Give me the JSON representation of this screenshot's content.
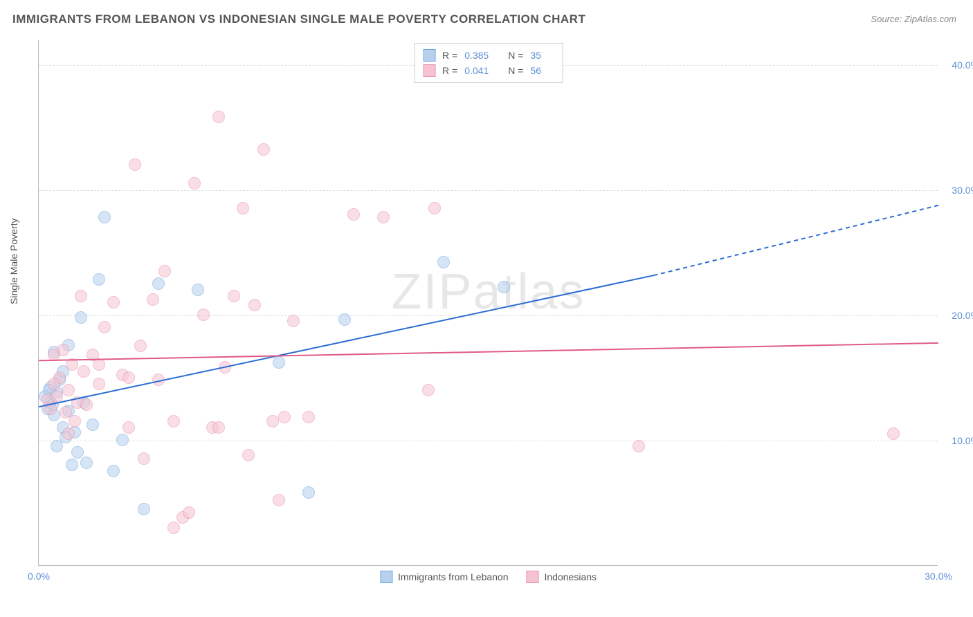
{
  "title": "IMMIGRANTS FROM LEBANON VS INDONESIAN SINGLE MALE POVERTY CORRELATION CHART",
  "source": "Source: ZipAtlas.com",
  "y_axis_label": "Single Male Poverty",
  "watermark": "ZIPatlas",
  "chart": {
    "type": "scatter",
    "xlim": [
      0,
      30
    ],
    "ylim": [
      0,
      42
    ],
    "x_ticks": [
      0.0,
      30.0
    ],
    "y_ticks": [
      10.0,
      20.0,
      30.0,
      40.0
    ],
    "x_tick_labels": [
      "0.0%",
      "30.0%"
    ],
    "y_tick_labels": [
      "10.0%",
      "20.0%",
      "30.0%",
      "40.0%"
    ],
    "grid_color": "#dddddd",
    "background_color": "#ffffff",
    "axis_color": "#bbbbbb",
    "tick_label_color": "#5b8fd6",
    "point_radius": 9,
    "point_opacity": 0.55,
    "series": [
      {
        "name": "Immigrants from Lebanon",
        "color_fill": "#b6d0ee",
        "color_stroke": "#6fa3de",
        "R": "0.385",
        "N": "35",
        "trend": {
          "x1": 0,
          "y1": 12.7,
          "x2": 20.5,
          "y2": 23.2,
          "x2_dash": 30,
          "y2_dash": 28.8,
          "color": "#2b6cd4",
          "width": 2
        },
        "points": [
          [
            0.2,
            13.5
          ],
          [
            0.3,
            12.5
          ],
          [
            0.4,
            13.0
          ],
          [
            0.4,
            14.2
          ],
          [
            0.5,
            12.0
          ],
          [
            0.5,
            17.0
          ],
          [
            0.6,
            13.8
          ],
          [
            0.7,
            14.8
          ],
          [
            0.8,
            11.0
          ],
          [
            0.8,
            15.5
          ],
          [
            0.9,
            10.2
          ],
          [
            1.0,
            12.3
          ],
          [
            1.0,
            17.6
          ],
          [
            1.1,
            8.0
          ],
          [
            1.2,
            10.6
          ],
          [
            1.3,
            9.0
          ],
          [
            1.4,
            19.8
          ],
          [
            1.5,
            13.0
          ],
          [
            1.8,
            11.2
          ],
          [
            2.0,
            22.8
          ],
          [
            2.2,
            27.8
          ],
          [
            2.5,
            7.5
          ],
          [
            2.8,
            10.0
          ],
          [
            3.5,
            4.5
          ],
          [
            4.0,
            22.5
          ],
          [
            5.3,
            22.0
          ],
          [
            8.0,
            16.2
          ],
          [
            9.0,
            5.8
          ],
          [
            10.2,
            19.6
          ],
          [
            13.5,
            24.2
          ],
          [
            15.5,
            22.2
          ],
          [
            0.6,
            9.5
          ],
          [
            1.6,
            8.2
          ],
          [
            0.35,
            14.0
          ],
          [
            0.45,
            12.8
          ]
        ]
      },
      {
        "name": "Indonesians",
        "color_fill": "#f6c4d1",
        "color_stroke": "#e98bac",
        "R": "0.041",
        "N": "56",
        "trend": {
          "x1": 0,
          "y1": 16.4,
          "x2": 30,
          "y2": 17.8,
          "color": "#e05a8a",
          "width": 2
        },
        "points": [
          [
            0.3,
            13.2
          ],
          [
            0.4,
            12.5
          ],
          [
            0.5,
            16.8
          ],
          [
            0.6,
            13.5
          ],
          [
            0.7,
            15.0
          ],
          [
            0.8,
            17.2
          ],
          [
            0.9,
            12.2
          ],
          [
            1.0,
            14.0
          ],
          [
            1.1,
            16.0
          ],
          [
            1.2,
            11.5
          ],
          [
            1.3,
            13.0
          ],
          [
            1.4,
            21.5
          ],
          [
            1.5,
            15.5
          ],
          [
            1.6,
            12.8
          ],
          [
            1.8,
            16.8
          ],
          [
            2.0,
            14.5
          ],
          [
            2.2,
            19.0
          ],
          [
            2.5,
            21.0
          ],
          [
            2.8,
            15.2
          ],
          [
            3.0,
            11.0
          ],
          [
            3.2,
            32.0
          ],
          [
            3.4,
            17.5
          ],
          [
            3.5,
            8.5
          ],
          [
            3.8,
            21.2
          ],
          [
            4.0,
            14.8
          ],
          [
            4.2,
            23.5
          ],
          [
            4.5,
            11.5
          ],
          [
            4.8,
            3.8
          ],
          [
            5.0,
            4.2
          ],
          [
            5.2,
            30.5
          ],
          [
            5.5,
            20.0
          ],
          [
            5.8,
            11.0
          ],
          [
            6.0,
            35.8
          ],
          [
            6.2,
            15.8
          ],
          [
            6.5,
            21.5
          ],
          [
            6.8,
            28.5
          ],
          [
            7.0,
            8.8
          ],
          [
            7.2,
            20.8
          ],
          [
            7.5,
            33.2
          ],
          [
            7.8,
            11.5
          ],
          [
            8.0,
            5.2
          ],
          [
            8.2,
            11.8
          ],
          [
            8.5,
            19.5
          ],
          [
            9.0,
            11.8
          ],
          [
            10.5,
            28.0
          ],
          [
            11.5,
            27.8
          ],
          [
            13.0,
            14.0
          ],
          [
            13.2,
            28.5
          ],
          [
            20.0,
            9.5
          ],
          [
            28.5,
            10.5
          ],
          [
            1.0,
            10.5
          ],
          [
            2.0,
            16.0
          ],
          [
            4.5,
            3.0
          ],
          [
            6.0,
            11.0
          ],
          [
            3.0,
            15.0
          ],
          [
            0.5,
            14.5
          ]
        ]
      }
    ]
  },
  "legend_top": {
    "rows": [
      {
        "swatch_fill": "#b6d0ee",
        "swatch_stroke": "#6fa3de",
        "r_label": "R =",
        "r_value": "0.385",
        "n_label": "N =",
        "n_value": "35"
      },
      {
        "swatch_fill": "#f6c4d1",
        "swatch_stroke": "#e98bac",
        "r_label": "R =",
        "r_value": "0.041",
        "n_label": "N =",
        "n_value": "56"
      }
    ]
  },
  "legend_bottom": {
    "items": [
      {
        "swatch_fill": "#b6d0ee",
        "swatch_stroke": "#6fa3de",
        "label": "Immigrants from Lebanon"
      },
      {
        "swatch_fill": "#f6c4d1",
        "swatch_stroke": "#e98bac",
        "label": "Indonesians"
      }
    ]
  }
}
